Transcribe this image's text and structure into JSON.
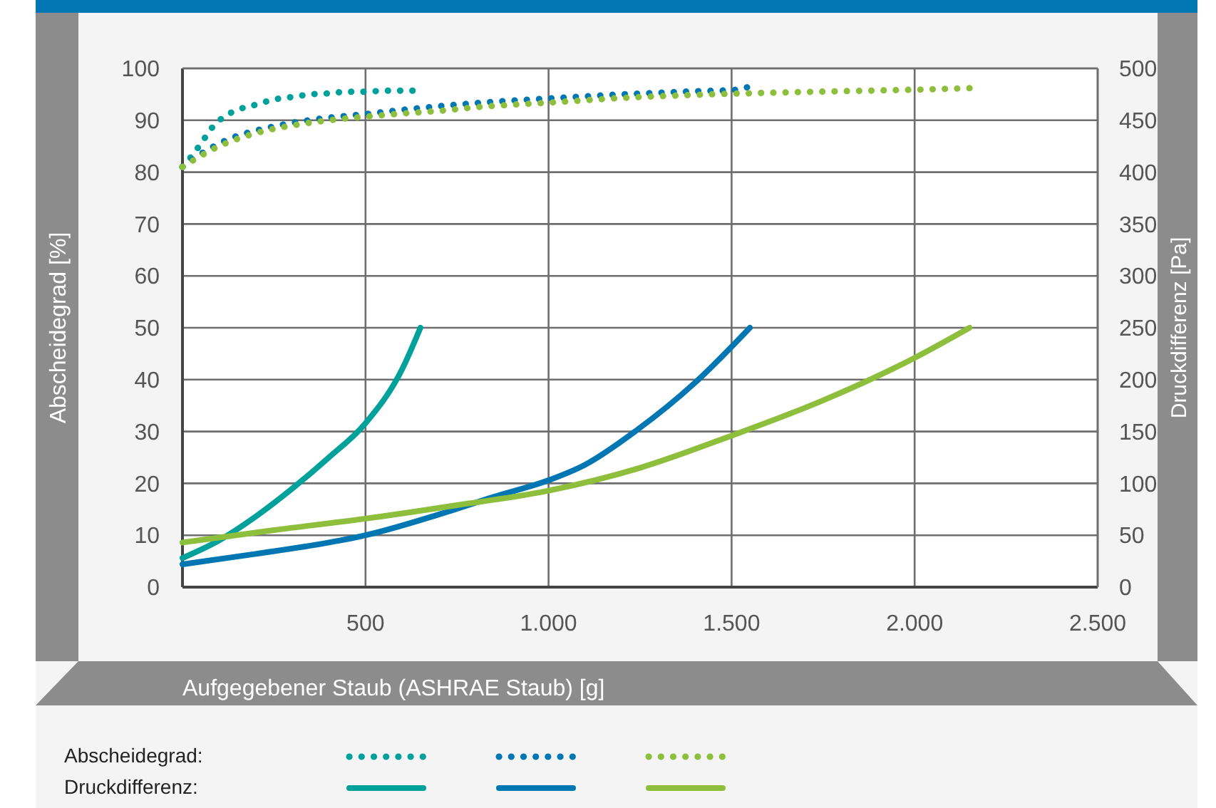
{
  "chart_data": {
    "type": "line",
    "xlabel": "Aufgegebener Staub (ASHRAE Staub) [g]",
    "ylabel": "Abscheidegrad [%]",
    "y2label": "Druckdifferenz [Pa]",
    "xlim": [
      0,
      2500
    ],
    "xticks": [
      {
        "value": 500,
        "label": "500"
      },
      {
        "value": 1000,
        "label": "1.000"
      },
      {
        "value": 1500,
        "label": "1.500"
      },
      {
        "value": 2000,
        "label": "2.000"
      },
      {
        "value": 2500,
        "label": "2.500"
      }
    ],
    "ylim": [
      0,
      100
    ],
    "yticks": [
      0,
      10,
      20,
      30,
      40,
      50,
      60,
      70,
      80,
      90,
      100
    ],
    "y2lim": [
      0,
      500
    ],
    "y2ticks": [
      0,
      50,
      100,
      150,
      200,
      250,
      300,
      350,
      400,
      450,
      500
    ],
    "grid": true,
    "annotations": [
      "Abscheidegrad:",
      "Druckdifferenz:"
    ],
    "series": [
      {
        "color": "#00a19a",
        "axis": "y",
        "line_style": "dotted",
        "x": [
          0,
          35,
          60,
          80,
          110,
          150,
          200,
          250,
          300,
          350,
          400,
          450,
          500,
          550,
          600,
          650
        ],
        "values": [
          81,
          84,
          86.5,
          88.5,
          90.5,
          92,
          93,
          94,
          94.5,
          95,
          95.2,
          95.5,
          95.5,
          95.7,
          95.7,
          95.7
        ]
      },
      {
        "color": "#0077b3",
        "axis": "y",
        "line_style": "dotted",
        "x": [
          0,
          50,
          100,
          150,
          200,
          300,
          400,
          500,
          600,
          700,
          800,
          900,
          1000,
          1100,
          1200,
          1300,
          1400,
          1500,
          1550
        ],
        "values": [
          81,
          83.5,
          85.5,
          87,
          88,
          89.5,
          90.5,
          91.2,
          92,
          92.7,
          93.3,
          93.8,
          94.2,
          94.6,
          95,
          95.3,
          95.6,
          95.8,
          96.5
        ]
      },
      {
        "color": "#8dbe3c",
        "axis": "y",
        "line_style": "dotted",
        "x": [
          0,
          100,
          200,
          300,
          400,
          500,
          600,
          700,
          800,
          900,
          1000,
          1200,
          1400,
          1600,
          1800,
          2000,
          2150
        ],
        "values": [
          81,
          85,
          87.5,
          89,
          90,
          90.7,
          91.3,
          91.8,
          92.5,
          93,
          93.4,
          94.3,
          94.9,
          95.3,
          95.6,
          95.9,
          96.2
        ]
      },
      {
        "color": "#00a19a",
        "axis": "y2",
        "line_style": "solid",
        "x": [
          0,
          100,
          200,
          300,
          400,
          500,
          600,
          650
        ],
        "values": [
          28,
          45,
          68,
          95,
          125,
          158,
          210,
          250
        ]
      },
      {
        "color": "#0077b3",
        "axis": "y2",
        "line_style": "solid",
        "x": [
          0,
          200,
          400,
          500,
          700,
          850,
          1000,
          1100,
          1240,
          1400,
          1550
        ],
        "values": [
          22,
          32,
          43,
          50,
          70,
          87,
          103,
          118,
          151,
          197,
          250
        ]
      },
      {
        "color": "#8dbe3c",
        "axis": "y2",
        "line_style": "solid",
        "x": [
          0,
          250,
          500,
          750,
          1000,
          1250,
          1500,
          1750,
          2000,
          2150
        ],
        "values": [
          43,
          55,
          66,
          79,
          93,
          115,
          146,
          180,
          221,
          250
        ]
      }
    ]
  }
}
